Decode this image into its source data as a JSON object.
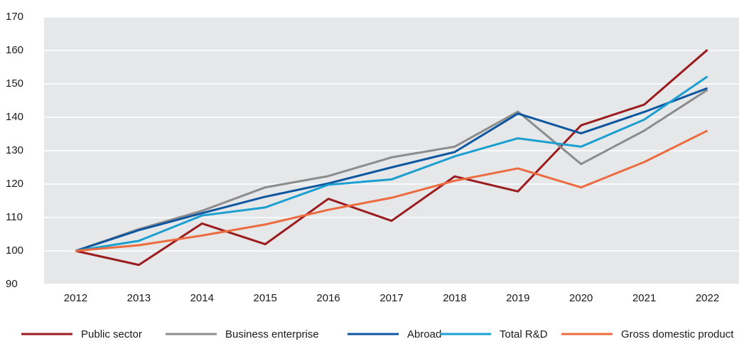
{
  "chart_data": {
    "type": "line",
    "categories": [
      "2012",
      "2013",
      "2014",
      "2015",
      "2016",
      "2017",
      "2018",
      "2019",
      "2020",
      "2021",
      "2022"
    ],
    "series": [
      {
        "name": "Public sector",
        "color": "#9b1c1f",
        "values": [
          100,
          95.8,
          108.2,
          102,
          115.6,
          109,
          122.3,
          117.8,
          137.6,
          143.8,
          160.2
        ]
      },
      {
        "name": "Business enterprise",
        "color": "#8c8c8c",
        "values": [
          100,
          106.5,
          112,
          119,
          122.4,
          128,
          131.2,
          141.7,
          126,
          136,
          148.2
        ]
      },
      {
        "name": "Abroad",
        "color": "#0d56a0",
        "values": [
          100,
          106.2,
          111.3,
          116.2,
          120.2,
          125,
          129.6,
          141.1,
          135.2,
          141.6,
          148.7
        ]
      },
      {
        "name": "Total R&D",
        "color": "#1a9fd0",
        "values": [
          100,
          103,
          110.6,
          113,
          119.8,
          121.4,
          128.3,
          133.7,
          131.2,
          139.3,
          152.2
        ]
      },
      {
        "name": "Gross domestic product",
        "color": "#ec6b3f",
        "values": [
          100,
          101.7,
          104.6,
          107.9,
          112.3,
          115.9,
          121,
          124.7,
          119,
          126.6,
          136
        ]
      }
    ],
    "ylim": [
      90,
      170
    ],
    "yticks": [
      90,
      100,
      110,
      120,
      130,
      140,
      150,
      160,
      170
    ],
    "grid": true,
    "legend": "bottom"
  }
}
